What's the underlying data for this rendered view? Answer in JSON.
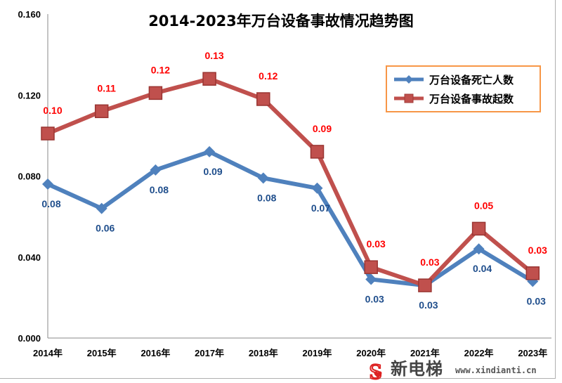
{
  "chart_data": {
    "type": "line",
    "title": "2014-2023年万台设备事故情况趋势图",
    "categories": [
      "2014年",
      "2015年",
      "2016年",
      "2017年",
      "2018年",
      "2019年",
      "2020年",
      "2021年",
      "2022年",
      "2023年"
    ],
    "ylim": [
      0,
      0.16
    ],
    "yticks": [
      "0.000",
      "0.040",
      "0.080",
      "0.120",
      "0.160"
    ],
    "grid": false,
    "legend_position": "top-right",
    "series": [
      {
        "name": "万台设备死亡人数",
        "color": "#4f81bd",
        "marker": "diamond",
        "values": [
          0.076,
          0.064,
          0.083,
          0.092,
          0.079,
          0.074,
          0.029,
          0.026,
          0.044,
          0.028
        ],
        "labels": [
          "0.08",
          "0.06",
          "0.08",
          "0.09",
          "0.08",
          "0.07",
          "0.03",
          "0.03",
          "0.04",
          "0.03"
        ],
        "label_color": "#1f4e8c"
      },
      {
        "name": "万台设备事故起数",
        "color": "#c0504d",
        "marker": "square",
        "values": [
          0.101,
          0.112,
          0.121,
          0.128,
          0.118,
          0.092,
          0.035,
          0.026,
          0.054,
          0.032
        ],
        "labels": [
          "0.10",
          "0.11",
          "0.12",
          "0.13",
          "0.12",
          "0.09",
          "0.03",
          "0.03",
          "0.05",
          "0.03"
        ],
        "label_color": "#ff0000"
      }
    ]
  },
  "watermark": {
    "name": "新电梯",
    "url": "www.xindianti.cn"
  }
}
